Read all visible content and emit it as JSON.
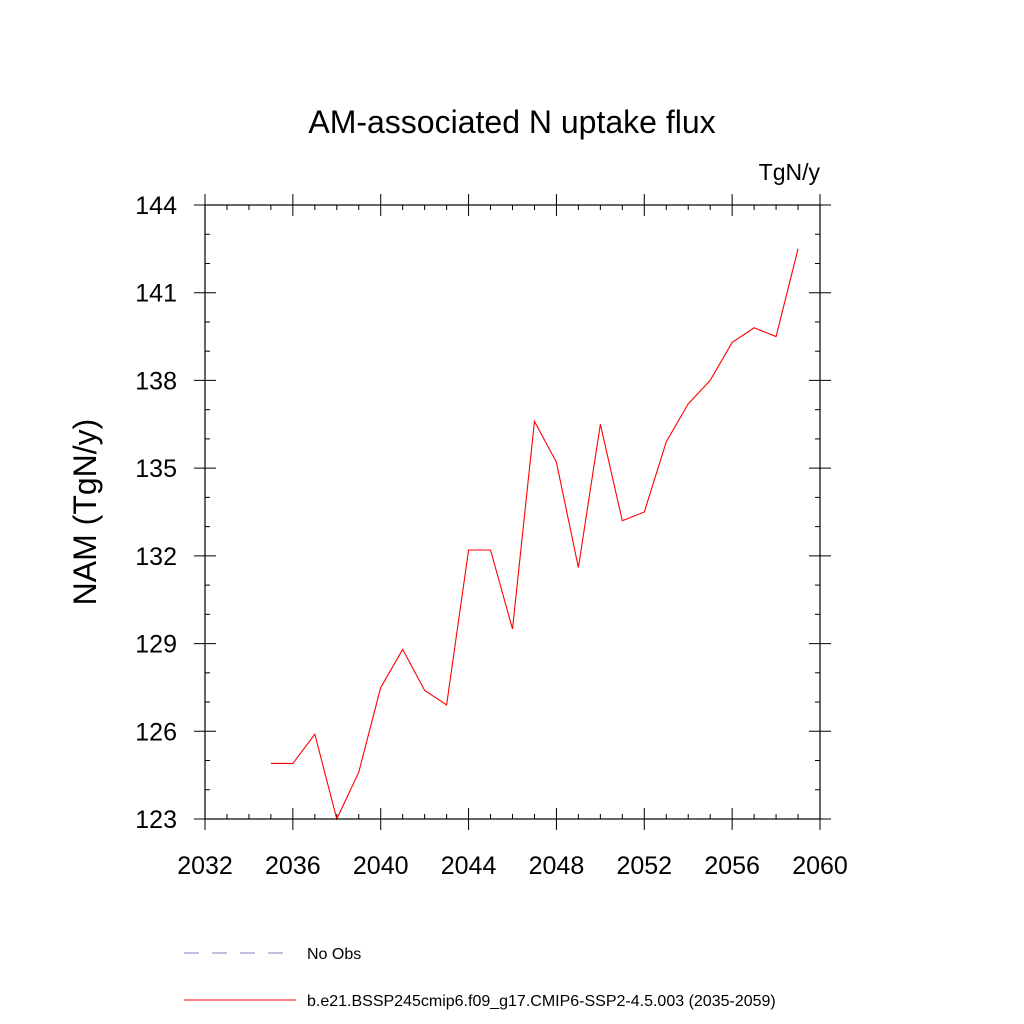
{
  "chart_data": {
    "type": "line",
    "title": "AM-associated N uptake flux",
    "units": "TgN/y",
    "ylabel": "NAM  (TgN/y)",
    "xlabel": "",
    "xlim": [
      2032,
      2060
    ],
    "ylim": [
      123,
      144
    ],
    "xticks": [
      2032,
      2036,
      2040,
      2044,
      2048,
      2052,
      2056,
      2060
    ],
    "yticks": [
      123,
      126,
      129,
      132,
      135,
      138,
      141,
      144
    ],
    "x_minor_step": 1,
    "y_minor_step": 1,
    "grid": false,
    "legend_position": "bottom",
    "legend": [
      {
        "label": "No Obs",
        "color": "#8080c0",
        "style": "dashed"
      },
      {
        "label": "b.e21.BSSP245cmip6.f09_g17.CMIP6-SSP2-4.5.003 (2035-2059)",
        "color": "#ff0000",
        "style": "solid"
      }
    ],
    "series": [
      {
        "name": "b.e21.BSSP245cmip6.f09_g17.CMIP6-SSP2-4.5.003 (2035-2059)",
        "color": "#ff0000",
        "x": [
          2035,
          2036,
          2037,
          2038,
          2039,
          2040,
          2041,
          2042,
          2043,
          2044,
          2045,
          2046,
          2047,
          2048,
          2049,
          2050,
          2051,
          2052,
          2053,
          2054,
          2055,
          2056,
          2057,
          2058,
          2059
        ],
        "values": [
          124.9,
          124.9,
          125.9,
          123.0,
          124.6,
          127.5,
          128.8,
          127.4,
          126.9,
          132.2,
          132.2,
          129.5,
          136.6,
          135.2,
          131.6,
          136.5,
          133.2,
          133.5,
          135.9,
          137.2,
          138.0,
          139.3,
          139.8,
          139.5,
          142.5
        ]
      }
    ]
  }
}
